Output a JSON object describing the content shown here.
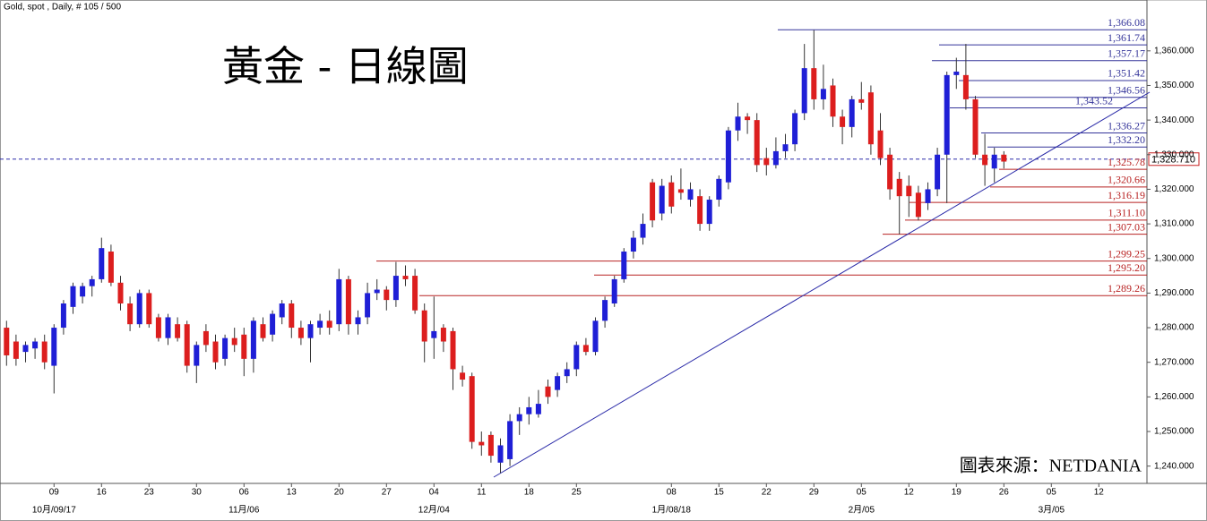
{
  "chart_data": {
    "type": "candlestick",
    "header": "Gold, spot , Daily, # 105 / 500",
    "title": "黃金 - 日線圖",
    "source": "圖表來源：NETDANIA",
    "up_color": "#1f1fd6",
    "down_color": "#dc1e1e",
    "ylim": [
      1235,
      1370.3
    ],
    "yticks": [
      {
        "value": 1240,
        "label": "1,240.000"
      },
      {
        "value": 1250,
        "label": "1,250.000"
      },
      {
        "value": 1260,
        "label": "1,260.000"
      },
      {
        "value": 1270,
        "label": "1,270.000"
      },
      {
        "value": 1280,
        "label": "1,280.000"
      },
      {
        "value": 1290,
        "label": "1,290.000"
      },
      {
        "value": 1300,
        "label": "1,300.000"
      },
      {
        "value": 1310,
        "label": "1,310.000"
      },
      {
        "value": 1320,
        "label": "1,320.000"
      },
      {
        "value": 1330,
        "label": "1,330.000"
      },
      {
        "value": 1340,
        "label": "1,340.000"
      },
      {
        "value": 1350,
        "label": "1,350.000"
      },
      {
        "value": 1360,
        "label": "1,360.000"
      }
    ],
    "categories": [
      null,
      null,
      null,
      null,
      null,
      "09",
      null,
      null,
      null,
      null,
      "16",
      null,
      null,
      null,
      null,
      "23",
      null,
      null,
      null,
      null,
      "30",
      null,
      null,
      null,
      null,
      "06",
      null,
      null,
      null,
      null,
      "13",
      null,
      null,
      null,
      null,
      "20",
      null,
      null,
      null,
      null,
      "27",
      null,
      null,
      null,
      null,
      "04",
      null,
      null,
      null,
      null,
      "11",
      null,
      null,
      null,
      null,
      "18",
      null,
      null,
      null,
      null,
      "25",
      null,
      null,
      null,
      null,
      null,
      null,
      null,
      null,
      null,
      "08",
      null,
      null,
      null,
      null,
      "15",
      null,
      null,
      null,
      null,
      "22",
      null,
      null,
      null,
      null,
      "29",
      null,
      null,
      null,
      null,
      "05",
      null,
      null,
      null,
      null,
      "12",
      null,
      null,
      null,
      null,
      "19",
      null,
      null,
      null,
      null,
      "26",
      null,
      null,
      null,
      null,
      "05",
      null,
      null,
      null,
      null,
      "12",
      null,
      null,
      null,
      null,
      null
    ],
    "month_labels": [
      null,
      null,
      null,
      null,
      null,
      "10月/09/17",
      null,
      null,
      null,
      null,
      null,
      null,
      null,
      null,
      null,
      null,
      null,
      null,
      null,
      null,
      null,
      null,
      null,
      null,
      null,
      "11月/06",
      null,
      null,
      null,
      null,
      null,
      null,
      null,
      null,
      null,
      null,
      null,
      null,
      null,
      null,
      null,
      null,
      null,
      null,
      null,
      "12月/04",
      null,
      null,
      null,
      null,
      null,
      null,
      null,
      null,
      null,
      null,
      null,
      null,
      null,
      null,
      null,
      null,
      null,
      null,
      null,
      null,
      null,
      null,
      null,
      null,
      "1月/08/18",
      null,
      null,
      null,
      null,
      null,
      null,
      null,
      null,
      null,
      null,
      null,
      null,
      null,
      null,
      null,
      null,
      null,
      null,
      null,
      "2月/05",
      null,
      null,
      null,
      null,
      null,
      null,
      null,
      null,
      null,
      null,
      null,
      null,
      null,
      null,
      null,
      null,
      null,
      null,
      null,
      "3月/05",
      null,
      null,
      null,
      null,
      null,
      null,
      null,
      null,
      null,
      null
    ],
    "ohlc": [
      [
        1280,
        1282,
        1269,
        1272
      ],
      [
        1276,
        1278,
        1269,
        1271
      ],
      [
        1273,
        1276,
        1270,
        1275
      ],
      [
        1274,
        1277,
        1271,
        1276
      ],
      [
        1276,
        1278,
        1268,
        1270
      ],
      [
        1269,
        1281,
        1261,
        1280
      ],
      [
        1280,
        1288,
        1278,
        1287
      ],
      [
        1286,
        1293,
        1284,
        1292
      ],
      [
        1289,
        1293,
        1287,
        1292
      ],
      [
        1292,
        1295,
        1289,
        1294
      ],
      [
        1294,
        1306,
        1293,
        1303
      ],
      [
        1302,
        1304,
        1292,
        1293
      ],
      [
        1293,
        1295,
        1285,
        1287
      ],
      [
        1287,
        1289,
        1279,
        1281
      ],
      [
        1281,
        1291,
        1280,
        1290
      ],
      [
        1290,
        1291,
        1280,
        1281
      ],
      [
        1283,
        1284,
        1276,
        1277
      ],
      [
        1277,
        1284,
        1275,
        1283
      ],
      [
        1281,
        1283,
        1276,
        1277
      ],
      [
        1281,
        1282,
        1267,
        1269
      ],
      [
        1269,
        1276,
        1264,
        1275
      ],
      [
        1279,
        1281,
        1273,
        1275
      ],
      [
        1276,
        1278,
        1268,
        1270
      ],
      [
        1271,
        1278,
        1269,
        1277
      ],
      [
        1277,
        1280,
        1273,
        1275
      ],
      [
        1278,
        1280,
        1266,
        1271
      ],
      [
        1271,
        1283,
        1267,
        1282
      ],
      [
        1281,
        1283,
        1276,
        1277
      ],
      [
        1278,
        1285,
        1276,
        1284
      ],
      [
        1283,
        1288,
        1281,
        1287
      ],
      [
        1287,
        1288,
        1277,
        1280
      ],
      [
        1280,
        1282,
        1275,
        1277
      ],
      [
        1277,
        1282,
        1270,
        1281
      ],
      [
        1280,
        1284,
        1278,
        1282
      ],
      [
        1282,
        1285,
        1278,
        1280
      ],
      [
        1281,
        1297,
        1279,
        1294
      ],
      [
        1294,
        1295,
        1278,
        1281
      ],
      [
        1281,
        1285,
        1278,
        1283
      ],
      [
        1283,
        1293,
        1281,
        1290
      ],
      [
        1290,
        1294,
        1288,
        1291
      ],
      [
        1291,
        1292,
        1285,
        1288
      ],
      [
        1288,
        1299,
        1286,
        1295
      ],
      [
        1295,
        1298,
        1292,
        1294
      ],
      [
        1295,
        1297,
        1284,
        1285
      ],
      [
        1285,
        1287,
        1270,
        1276
      ],
      [
        1277,
        1289,
        1271,
        1279
      ],
      [
        1280,
        1281,
        1273,
        1276
      ],
      [
        1279,
        1280,
        1262,
        1268
      ],
      [
        1267,
        1269,
        1263,
        1265
      ],
      [
        1266,
        1267,
        1245,
        1247
      ],
      [
        1247,
        1250,
        1243,
        1246
      ],
      [
        1249,
        1250,
        1241,
        1243
      ],
      [
        1241,
        1248,
        1238,
        1246
      ],
      [
        1242,
        1255,
        1240,
        1253
      ],
      [
        1253,
        1257,
        1249,
        1255
      ],
      [
        1255,
        1260,
        1252,
        1257
      ],
      [
        1255,
        1262,
        1254,
        1258
      ],
      [
        1263,
        1265,
        1258,
        1260
      ],
      [
        1262,
        1267,
        1260,
        1266
      ],
      [
        1266,
        1270,
        1264,
        1268
      ],
      [
        1268,
        1276,
        1266,
        1275
      ],
      [
        1275,
        1277,
        1272,
        1273
      ],
      [
        1273,
        1283,
        1272,
        1282
      ],
      [
        1282,
        1289,
        1280,
        1288
      ],
      [
        1287,
        1295,
        1286,
        1294
      ],
      [
        1294,
        1303,
        1293,
        1302
      ],
      [
        1302,
        1308,
        1300,
        1306
      ],
      [
        1306,
        1313,
        1304,
        1310
      ],
      [
        1322,
        1323,
        1309,
        1311
      ],
      [
        1313,
        1323,
        1311,
        1321
      ],
      [
        1322,
        1324,
        1313,
        1315
      ],
      [
        1320,
        1326,
        1317,
        1319
      ],
      [
        1317,
        1322,
        1315,
        1320
      ],
      [
        1318,
        1320,
        1308,
        1310
      ],
      [
        1310,
        1318,
        1308,
        1317
      ],
      [
        1317,
        1324,
        1315,
        1323
      ],
      [
        1322,
        1338,
        1320,
        1337
      ],
      [
        1337,
        1345,
        1334,
        1341
      ],
      [
        1341,
        1342,
        1336,
        1340
      ],
      [
        1340,
        1342,
        1325,
        1327
      ],
      [
        1329,
        1332,
        1324,
        1327
      ],
      [
        1327,
        1335,
        1326,
        1331
      ],
      [
        1331,
        1336,
        1329,
        1333
      ],
      [
        1333,
        1343,
        1331,
        1342
      ],
      [
        1342,
        1362,
        1340,
        1355
      ],
      [
        1355,
        1366,
        1343,
        1346
      ],
      [
        1346,
        1356,
        1343,
        1349
      ],
      [
        1350,
        1352,
        1338,
        1341
      ],
      [
        1341,
        1343,
        1333,
        1338
      ],
      [
        1338,
        1347,
        1335,
        1346
      ],
      [
        1346,
        1351,
        1343,
        1345
      ],
      [
        1348,
        1350,
        1330,
        1333
      ],
      [
        1337,
        1342,
        1327,
        1329
      ],
      [
        1330,
        1332,
        1317,
        1320
      ],
      [
        1323,
        1325,
        1307,
        1318
      ],
      [
        1321,
        1324,
        1312,
        1318
      ],
      [
        1319,
        1321,
        1311,
        1312
      ],
      [
        1316,
        1322,
        1314,
        1320
      ],
      [
        1320,
        1332,
        1318,
        1330
      ],
      [
        1330,
        1354,
        1316,
        1353
      ],
      [
        1353,
        1358,
        1349,
        1354
      ],
      [
        1353,
        1362,
        1343,
        1346
      ],
      [
        1346,
        1347,
        1329,
        1330
      ],
      [
        1330,
        1336,
        1321,
        1327
      ],
      [
        1326,
        1332,
        1322,
        1330
      ],
      [
        1330,
        1331,
        1326,
        1328
      ],
      null,
      null,
      null,
      null,
      null,
      null,
      null,
      null,
      null,
      null,
      null,
      null,
      null,
      null,
      null
    ],
    "levels": [
      {
        "value": 1366.08,
        "label": "1,366.08",
        "color": "#35359a"
      },
      {
        "value": 1361.74,
        "label": "1,361.74",
        "color": "#35359a"
      },
      {
        "value": 1357.17,
        "label": "1,357.17",
        "color": "#35359a"
      },
      {
        "value": 1351.42,
        "label": "1,351.42",
        "color": "#35359a"
      },
      {
        "value": 1346.56,
        "label": "1,346.56",
        "color": "#35359a"
      },
      {
        "value": 1343.52,
        "label": "1,343.52",
        "color": "#35359a"
      },
      {
        "value": 1336.27,
        "label": "1,336.27",
        "color": "#35359a"
      },
      {
        "value": 1332.2,
        "label": "1,332.20",
        "color": "#35359a"
      },
      {
        "value": 1325.78,
        "label": "1,325.78",
        "color": "#b82222"
      },
      {
        "value": 1320.66,
        "label": "1,320.66",
        "color": "#b82222"
      },
      {
        "value": 1316.19,
        "label": "1,316.19",
        "color": "#b82222"
      },
      {
        "value": 1311.1,
        "label": "1,311.10",
        "color": "#b82222"
      },
      {
        "value": 1307.03,
        "label": "1,307.03",
        "color": "#b82222"
      },
      {
        "value": 1299.25,
        "label": "1,299.25",
        "color": "#b82222"
      },
      {
        "value": 1295.2,
        "label": "1,295.20",
        "color": "#b82222"
      },
      {
        "value": 1289.26,
        "label": "1,289.26",
        "color": "#b82222"
      }
    ],
    "last": {
      "value": 1328.71,
      "label": "1,328.710",
      "color": "#c62020"
    }
  }
}
